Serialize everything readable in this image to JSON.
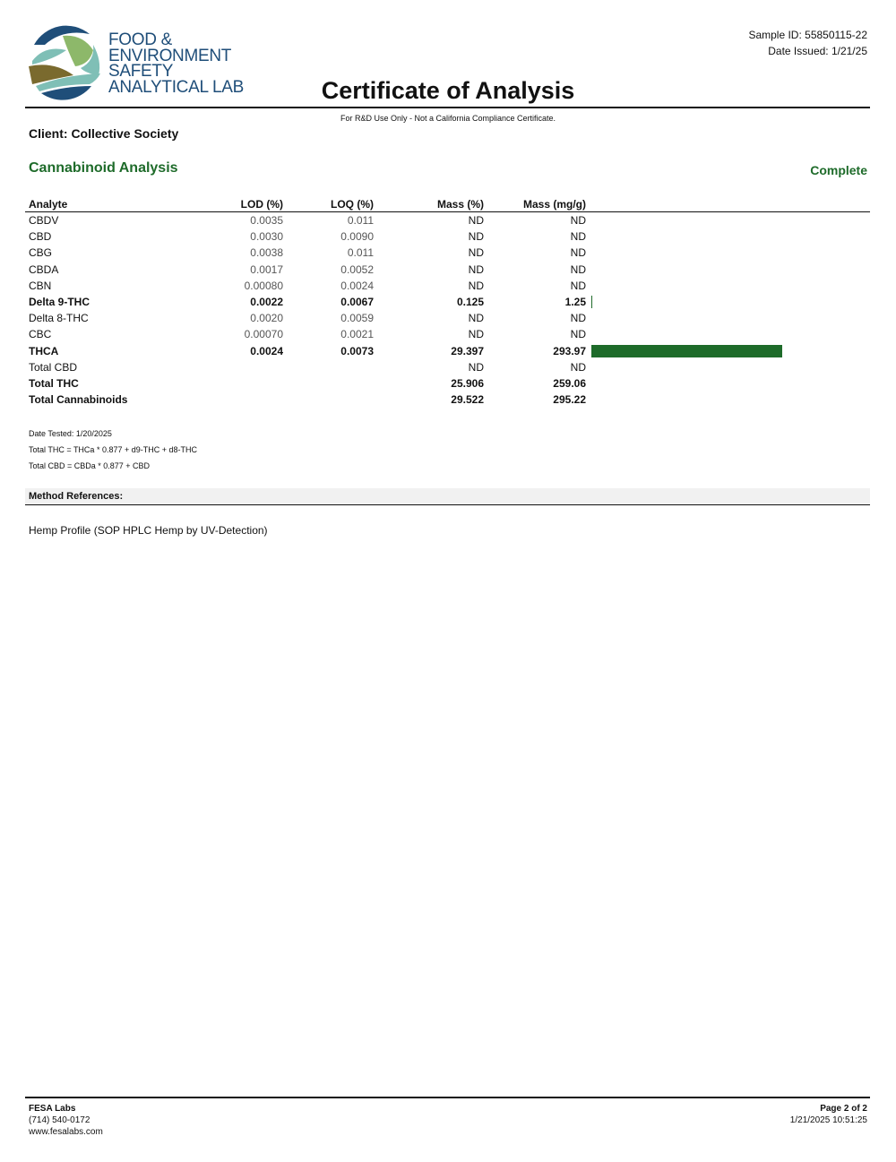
{
  "header": {
    "logo_lines": [
      "FOOD &",
      "ENVIRONMENT",
      "SAFETY",
      "ANALYTICAL LAB"
    ],
    "title": "Certificate of Analysis",
    "sample_id": "Sample ID: 55850115-22",
    "date_issued": "Date Issued: 1/21/25",
    "disclaimer": "For R&D Use Only - Not a California Compliance Certificate."
  },
  "client": "Client: Collective Society",
  "section": {
    "title": "Cannabinoid Analysis",
    "status": "Complete"
  },
  "table": {
    "columns": [
      "Analyte",
      "LOD (%)",
      "LOQ (%)",
      "Mass (%)",
      "Mass (mg/g)"
    ],
    "rows": [
      {
        "analyte": "CBDV",
        "lod": "0.0035",
        "loq": "0.011",
        "pct": "ND",
        "mg": "ND",
        "bold": false,
        "bar": 0
      },
      {
        "analyte": "CBD",
        "lod": "0.0030",
        "loq": "0.0090",
        "pct": "ND",
        "mg": "ND",
        "bold": false,
        "bar": 0
      },
      {
        "analyte": "CBG",
        "lod": "0.0038",
        "loq": "0.011",
        "pct": "ND",
        "mg": "ND",
        "bold": false,
        "bar": 0
      },
      {
        "analyte": "CBDA",
        "lod": "0.0017",
        "loq": "0.0052",
        "pct": "ND",
        "mg": "ND",
        "bold": false,
        "bar": 0
      },
      {
        "analyte": "CBN",
        "lod": "0.00080",
        "loq": "0.0024",
        "pct": "ND",
        "mg": "ND",
        "bold": false,
        "bar": 0
      },
      {
        "analyte": "Delta 9-THC",
        "lod": "0.0022",
        "loq": "0.0067",
        "pct": "0.125",
        "mg": "1.25",
        "bold": true,
        "bar": 1.25
      },
      {
        "analyte": "Delta 8-THC",
        "lod": "0.0020",
        "loq": "0.0059",
        "pct": "ND",
        "mg": "ND",
        "bold": false,
        "bar": 0
      },
      {
        "analyte": "CBC",
        "lod": "0.00070",
        "loq": "0.0021",
        "pct": "ND",
        "mg": "ND",
        "bold": false,
        "bar": 0
      },
      {
        "analyte": "THCA",
        "lod": "0.0024",
        "loq": "0.0073",
        "pct": "29.397",
        "mg": "293.97",
        "bold": true,
        "bar": 293.97
      },
      {
        "analyte": "Total CBD",
        "lod": "",
        "loq": "",
        "pct": "ND",
        "mg": "ND",
        "bold": false,
        "bar": 0
      },
      {
        "analyte": "Total THC",
        "lod": "",
        "loq": "",
        "pct": "25.906",
        "mg": "259.06",
        "bold": true,
        "bar": 0
      },
      {
        "analyte": "Total Cannabinoids",
        "lod": "",
        "loq": "",
        "pct": "29.522",
        "mg": "295.22",
        "bold": true,
        "bar": 0
      }
    ],
    "bar_color": "#1e6b2a"
  },
  "notes": [
    "Date Tested: 1/20/2025",
    "Total THC = THCa * 0.877 + d9-THC + d8-THC",
    "Total CBD = CBDa * 0.877 + CBD"
  ],
  "method": {
    "title": "Method References:",
    "text": "Hemp Profile (SOP HPLC Hemp by UV-Detection)"
  },
  "footer": {
    "company": "FESA Labs",
    "phone": "(714) 540-0172",
    "website": "www.fesalabs.com",
    "page": "Page 2 of 2",
    "timestamp": "1/21/2025 10:51:25"
  }
}
